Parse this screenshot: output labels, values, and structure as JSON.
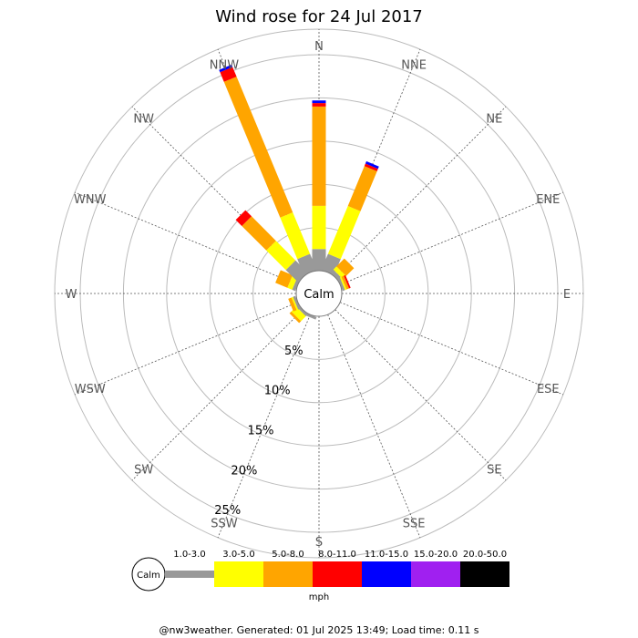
{
  "chart_data": {
    "type": "wind-rose",
    "title": "Wind rose for 24 Jul 2017",
    "calm_label": "Calm",
    "unit_label": "mph",
    "footer": "@nw3weather. Generated: 01 Jul 2025 13:49; Load time: 0.11 s",
    "grid": true,
    "rings": [
      5,
      10,
      15,
      20,
      25
    ],
    "ring_labels": [
      "5%",
      "10%",
      "15%",
      "20%",
      "25%"
    ],
    "r_max": 25,
    "directions": [
      "N",
      "NNE",
      "NE",
      "ENE",
      "E",
      "ESE",
      "SE",
      "SSE",
      "S",
      "SSW",
      "SW",
      "WSW",
      "W",
      "WNW",
      "NW",
      "NNW"
    ],
    "speed_bins": [
      {
        "label": "1.0-3.0",
        "color": "#999999"
      },
      {
        "label": "3.0-5.0",
        "color": "#ffff00"
      },
      {
        "label": "5.0-8.0",
        "color": "#ffa500"
      },
      {
        "label": "8.0-11.0",
        "color": "#ff0000"
      },
      {
        "label": "11.0-15.0",
        "color": "#0000ff"
      },
      {
        "label": "15.0-20.0",
        "color": "#a020f0"
      },
      {
        "label": "20.0-50.0",
        "color": "#000000"
      }
    ],
    "frequencies": {
      "N": [
        2.5,
        5.0,
        11.5,
        0.4,
        0.3,
        0,
        0
      ],
      "NNE": [
        2.0,
        6.0,
        5.0,
        0.3,
        0.3,
        0,
        0
      ],
      "NE": [
        0.5,
        0.5,
        1.3,
        0,
        0,
        0,
        0
      ],
      "ENE": [
        0.3,
        0.2,
        0.3,
        0.2,
        0,
        0,
        0
      ],
      "E": [
        0,
        0,
        0,
        0,
        0,
        0,
        0
      ],
      "ESE": [
        0,
        0,
        0,
        0,
        0,
        0,
        0
      ],
      "SE": [
        0,
        0,
        0,
        0,
        0,
        0,
        0
      ],
      "SSE": [
        0,
        0,
        0,
        0,
        0,
        0,
        0
      ],
      "S": [
        0,
        0,
        0,
        0,
        0,
        0,
        0
      ],
      "SSW": [
        0.3,
        0,
        0,
        0,
        0,
        0,
        0
      ],
      "SW": [
        0.3,
        0.8,
        0.3,
        0,
        0,
        0,
        0
      ],
      "WSW": [
        0.3,
        0.2,
        0.4,
        0,
        0,
        0,
        0
      ],
      "W": [
        0,
        0,
        0,
        0,
        0,
        0,
        0
      ],
      "WNW": [
        0.4,
        0.6,
        1.5,
        0,
        0,
        0,
        0
      ],
      "NW": [
        2.0,
        3.2,
        4.0,
        1.0,
        0,
        0,
        0
      ],
      "NNW": [
        2.0,
        5.2,
        17.0,
        1.2,
        0.3,
        0,
        0
      ]
    }
  }
}
